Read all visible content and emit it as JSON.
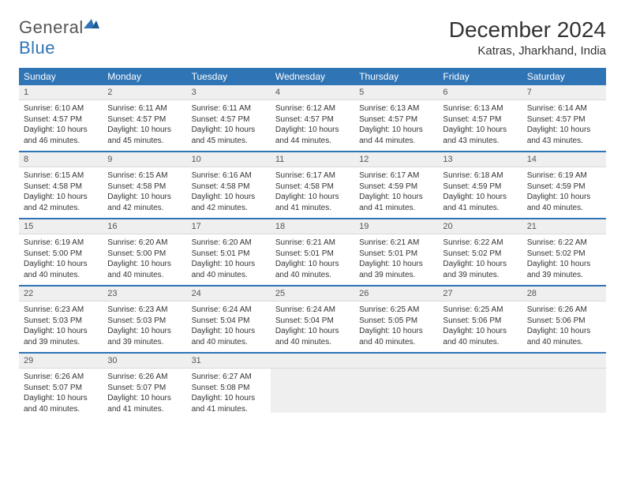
{
  "brand": {
    "name_a": "General",
    "name_b": "Blue"
  },
  "title": "December 2024",
  "location": "Katras, Jharkhand, India",
  "colors": {
    "header_bg": "#2f74b5",
    "header_fg": "#ffffff",
    "daynum_bg": "#efefef",
    "text": "#333333"
  },
  "weekdays": [
    "Sunday",
    "Monday",
    "Tuesday",
    "Wednesday",
    "Thursday",
    "Friday",
    "Saturday"
  ],
  "weeks": [
    [
      {
        "n": "1",
        "sr": "Sunrise: 6:10 AM",
        "ss": "Sunset: 4:57 PM",
        "dl": "Daylight: 10 hours and 46 minutes."
      },
      {
        "n": "2",
        "sr": "Sunrise: 6:11 AM",
        "ss": "Sunset: 4:57 PM",
        "dl": "Daylight: 10 hours and 45 minutes."
      },
      {
        "n": "3",
        "sr": "Sunrise: 6:11 AM",
        "ss": "Sunset: 4:57 PM",
        "dl": "Daylight: 10 hours and 45 minutes."
      },
      {
        "n": "4",
        "sr": "Sunrise: 6:12 AM",
        "ss": "Sunset: 4:57 PM",
        "dl": "Daylight: 10 hours and 44 minutes."
      },
      {
        "n": "5",
        "sr": "Sunrise: 6:13 AM",
        "ss": "Sunset: 4:57 PM",
        "dl": "Daylight: 10 hours and 44 minutes."
      },
      {
        "n": "6",
        "sr": "Sunrise: 6:13 AM",
        "ss": "Sunset: 4:57 PM",
        "dl": "Daylight: 10 hours and 43 minutes."
      },
      {
        "n": "7",
        "sr": "Sunrise: 6:14 AM",
        "ss": "Sunset: 4:57 PM",
        "dl": "Daylight: 10 hours and 43 minutes."
      }
    ],
    [
      {
        "n": "8",
        "sr": "Sunrise: 6:15 AM",
        "ss": "Sunset: 4:58 PM",
        "dl": "Daylight: 10 hours and 42 minutes."
      },
      {
        "n": "9",
        "sr": "Sunrise: 6:15 AM",
        "ss": "Sunset: 4:58 PM",
        "dl": "Daylight: 10 hours and 42 minutes."
      },
      {
        "n": "10",
        "sr": "Sunrise: 6:16 AM",
        "ss": "Sunset: 4:58 PM",
        "dl": "Daylight: 10 hours and 42 minutes."
      },
      {
        "n": "11",
        "sr": "Sunrise: 6:17 AM",
        "ss": "Sunset: 4:58 PM",
        "dl": "Daylight: 10 hours and 41 minutes."
      },
      {
        "n": "12",
        "sr": "Sunrise: 6:17 AM",
        "ss": "Sunset: 4:59 PM",
        "dl": "Daylight: 10 hours and 41 minutes."
      },
      {
        "n": "13",
        "sr": "Sunrise: 6:18 AM",
        "ss": "Sunset: 4:59 PM",
        "dl": "Daylight: 10 hours and 41 minutes."
      },
      {
        "n": "14",
        "sr": "Sunrise: 6:19 AM",
        "ss": "Sunset: 4:59 PM",
        "dl": "Daylight: 10 hours and 40 minutes."
      }
    ],
    [
      {
        "n": "15",
        "sr": "Sunrise: 6:19 AM",
        "ss": "Sunset: 5:00 PM",
        "dl": "Daylight: 10 hours and 40 minutes."
      },
      {
        "n": "16",
        "sr": "Sunrise: 6:20 AM",
        "ss": "Sunset: 5:00 PM",
        "dl": "Daylight: 10 hours and 40 minutes."
      },
      {
        "n": "17",
        "sr": "Sunrise: 6:20 AM",
        "ss": "Sunset: 5:01 PM",
        "dl": "Daylight: 10 hours and 40 minutes."
      },
      {
        "n": "18",
        "sr": "Sunrise: 6:21 AM",
        "ss": "Sunset: 5:01 PM",
        "dl": "Daylight: 10 hours and 40 minutes."
      },
      {
        "n": "19",
        "sr": "Sunrise: 6:21 AM",
        "ss": "Sunset: 5:01 PM",
        "dl": "Daylight: 10 hours and 39 minutes."
      },
      {
        "n": "20",
        "sr": "Sunrise: 6:22 AM",
        "ss": "Sunset: 5:02 PM",
        "dl": "Daylight: 10 hours and 39 minutes."
      },
      {
        "n": "21",
        "sr": "Sunrise: 6:22 AM",
        "ss": "Sunset: 5:02 PM",
        "dl": "Daylight: 10 hours and 39 minutes."
      }
    ],
    [
      {
        "n": "22",
        "sr": "Sunrise: 6:23 AM",
        "ss": "Sunset: 5:03 PM",
        "dl": "Daylight: 10 hours and 39 minutes."
      },
      {
        "n": "23",
        "sr": "Sunrise: 6:23 AM",
        "ss": "Sunset: 5:03 PM",
        "dl": "Daylight: 10 hours and 39 minutes."
      },
      {
        "n": "24",
        "sr": "Sunrise: 6:24 AM",
        "ss": "Sunset: 5:04 PM",
        "dl": "Daylight: 10 hours and 40 minutes."
      },
      {
        "n": "25",
        "sr": "Sunrise: 6:24 AM",
        "ss": "Sunset: 5:04 PM",
        "dl": "Daylight: 10 hours and 40 minutes."
      },
      {
        "n": "26",
        "sr": "Sunrise: 6:25 AM",
        "ss": "Sunset: 5:05 PM",
        "dl": "Daylight: 10 hours and 40 minutes."
      },
      {
        "n": "27",
        "sr": "Sunrise: 6:25 AM",
        "ss": "Sunset: 5:06 PM",
        "dl": "Daylight: 10 hours and 40 minutes."
      },
      {
        "n": "28",
        "sr": "Sunrise: 6:26 AM",
        "ss": "Sunset: 5:06 PM",
        "dl": "Daylight: 10 hours and 40 minutes."
      }
    ],
    [
      {
        "n": "29",
        "sr": "Sunrise: 6:26 AM",
        "ss": "Sunset: 5:07 PM",
        "dl": "Daylight: 10 hours and 40 minutes."
      },
      {
        "n": "30",
        "sr": "Sunrise: 6:26 AM",
        "ss": "Sunset: 5:07 PM",
        "dl": "Daylight: 10 hours and 41 minutes."
      },
      {
        "n": "31",
        "sr": "Sunrise: 6:27 AM",
        "ss": "Sunset: 5:08 PM",
        "dl": "Daylight: 10 hours and 41 minutes."
      },
      {
        "empty": true
      },
      {
        "empty": true
      },
      {
        "empty": true
      },
      {
        "empty": true
      }
    ]
  ]
}
